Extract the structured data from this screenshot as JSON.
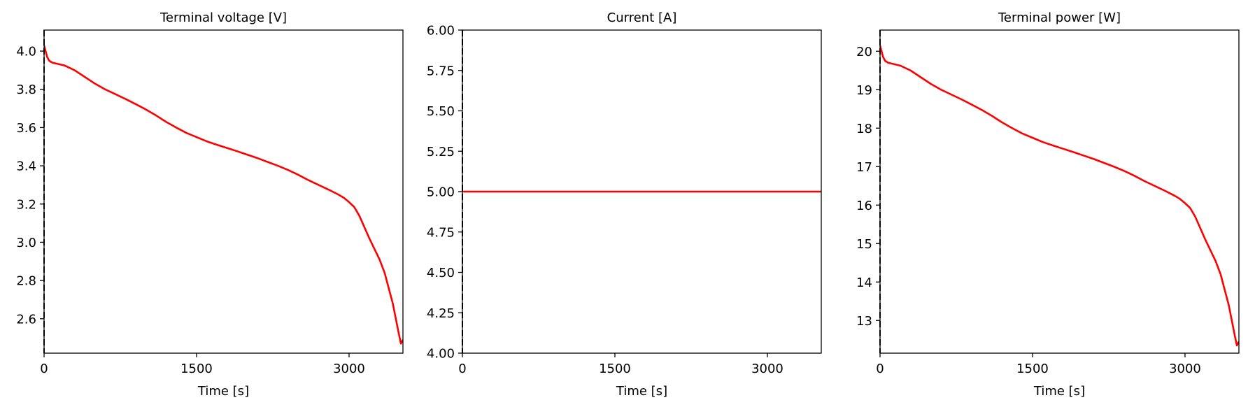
{
  "chart_data": [
    {
      "type": "line",
      "title": "Terminal voltage [V]",
      "xlabel": "Time [s]",
      "ylabel": "",
      "xlim": [
        0,
        3530
      ],
      "ylim": [
        2.42,
        4.11
      ],
      "xticks": [
        0,
        1500,
        3000
      ],
      "xtick_labels": [
        "0",
        "1500",
        "3000"
      ],
      "yticks": [
        2.6,
        2.8,
        3.0,
        3.2,
        3.4,
        3.6,
        3.8,
        4.0
      ],
      "ytick_labels": [
        "2.6",
        "2.8",
        "3.0",
        "3.2",
        "3.4",
        "3.6",
        "3.8",
        "4.0"
      ],
      "grid": false,
      "vline_x": 0,
      "series": [
        {
          "color": "#ff0000",
          "x": [
            0,
            15,
            30,
            50,
            80,
            120,
            160,
            200,
            300,
            400,
            500,
            600,
            700,
            800,
            900,
            1000,
            1100,
            1200,
            1300,
            1400,
            1500,
            1600,
            1700,
            1800,
            1900,
            2000,
            2100,
            2200,
            2300,
            2400,
            2500,
            2600,
            2700,
            2800,
            2900,
            2950,
            3000,
            3050,
            3100,
            3150,
            3200,
            3250,
            3300,
            3350,
            3400,
            3430,
            3460,
            3490,
            3510,
            3530
          ],
          "y": [
            4.03,
            4.0,
            3.97,
            3.95,
            3.94,
            3.935,
            3.93,
            3.925,
            3.9,
            3.865,
            3.83,
            3.8,
            3.775,
            3.75,
            3.723,
            3.695,
            3.664,
            3.63,
            3.6,
            3.572,
            3.55,
            3.528,
            3.51,
            3.493,
            3.476,
            3.458,
            3.44,
            3.42,
            3.4,
            3.378,
            3.353,
            3.325,
            3.3,
            3.275,
            3.248,
            3.232,
            3.21,
            3.185,
            3.14,
            3.08,
            3.02,
            2.965,
            2.91,
            2.84,
            2.74,
            2.68,
            2.6,
            2.52,
            2.47,
            2.49
          ]
        }
      ]
    },
    {
      "type": "line",
      "title": "Current [A]",
      "xlabel": "Time [s]",
      "ylabel": "",
      "xlim": [
        0,
        3530
      ],
      "ylim": [
        4.0,
        6.0
      ],
      "xticks": [
        0,
        1500,
        3000
      ],
      "xtick_labels": [
        "0",
        "1500",
        "3000"
      ],
      "yticks": [
        4.0,
        4.25,
        4.5,
        4.75,
        5.0,
        5.25,
        5.5,
        5.75,
        6.0
      ],
      "ytick_labels": [
        "4.00",
        "4.25",
        "4.50",
        "4.75",
        "5.00",
        "5.25",
        "5.50",
        "5.75",
        "6.00"
      ],
      "grid": false,
      "vline_x": 0,
      "series": [
        {
          "color": "#ff0000",
          "x": [
            0,
            3530
          ],
          "y": [
            5.0,
            5.0
          ]
        }
      ]
    },
    {
      "type": "line",
      "title": "Terminal power [W]",
      "xlabel": "Time [s]",
      "ylabel": "",
      "xlim": [
        0,
        3530
      ],
      "ylim": [
        12.15,
        20.55
      ],
      "xticks": [
        0,
        1500,
        3000
      ],
      "xtick_labels": [
        "0",
        "1500",
        "3000"
      ],
      "yticks": [
        13,
        14,
        15,
        16,
        17,
        18,
        19,
        20
      ],
      "ytick_labels": [
        "13",
        "14",
        "15",
        "16",
        "17",
        "18",
        "19",
        "20"
      ],
      "grid": false,
      "vline_x": 0,
      "series": [
        {
          "color": "#ff0000",
          "x": [
            0,
            15,
            30,
            50,
            80,
            120,
            160,
            200,
            300,
            400,
            500,
            600,
            700,
            800,
            900,
            1000,
            1100,
            1200,
            1300,
            1400,
            1500,
            1600,
            1700,
            1800,
            1900,
            2000,
            2100,
            2200,
            2300,
            2400,
            2500,
            2600,
            2700,
            2800,
            2900,
            2950,
            3000,
            3050,
            3100,
            3150,
            3200,
            3250,
            3300,
            3350,
            3400,
            3430,
            3460,
            3490,
            3510,
            3530
          ],
          "y": [
            20.15,
            20.0,
            19.85,
            19.75,
            19.7,
            19.675,
            19.65,
            19.625,
            19.5,
            19.325,
            19.15,
            19.0,
            18.875,
            18.75,
            18.615,
            18.475,
            18.32,
            18.15,
            18.0,
            17.86,
            17.75,
            17.64,
            17.55,
            17.465,
            17.38,
            17.29,
            17.2,
            17.1,
            17.0,
            16.89,
            16.765,
            16.625,
            16.5,
            16.375,
            16.24,
            16.16,
            16.05,
            15.925,
            15.7,
            15.4,
            15.1,
            14.825,
            14.55,
            14.2,
            13.7,
            13.4,
            13.0,
            12.6,
            12.35,
            12.45
          ]
        }
      ]
    }
  ]
}
